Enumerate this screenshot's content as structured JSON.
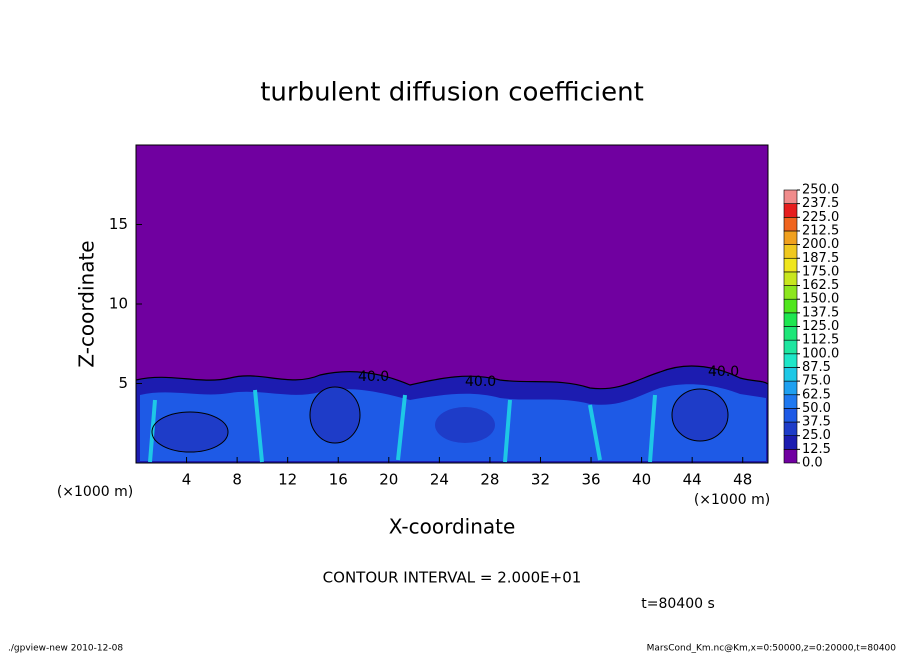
{
  "chart_data": {
    "type": "contour",
    "title": "turbulent diffusion coefficient",
    "xlabel": "X-coordinate",
    "ylabel": "Z-coordinate",
    "xunit": "(×1000 m)",
    "xlim": [
      0,
      50
    ],
    "xticks": [
      4,
      8,
      12,
      16,
      20,
      24,
      28,
      32,
      36,
      40,
      44,
      48
    ],
    "ylim": [
      0,
      20
    ],
    "yticks": [
      5,
      10,
      15
    ],
    "colorbar": {
      "ticks": [
        {
          "value": 0,
          "label": "0.0"
        },
        {
          "value": 12.5,
          "label": "12.5"
        },
        {
          "value": 25,
          "label": "25.0"
        },
        {
          "value": 37.5,
          "label": "37.5"
        },
        {
          "value": 50,
          "label": "50.0"
        },
        {
          "value": 62.5,
          "label": "62.5"
        },
        {
          "value": 75,
          "label": "75.0"
        },
        {
          "value": 87.5,
          "label": "87.5"
        },
        {
          "value": 100,
          "label": "100.0"
        },
        {
          "value": 112.5,
          "label": "112.5"
        },
        {
          "value": 125,
          "label": "125.0"
        },
        {
          "value": 137.5,
          "label": "137.5"
        },
        {
          "value": 150,
          "label": "150.0"
        },
        {
          "value": 162.5,
          "label": "162.5"
        },
        {
          "value": 175,
          "label": "175.0"
        },
        {
          "value": 187.5,
          "label": "187.5"
        },
        {
          "value": 200,
          "label": "200.0"
        },
        {
          "value": 212.5,
          "label": "212.5"
        },
        {
          "value": 225,
          "label": "225.0"
        },
        {
          "value": 237.5,
          "label": "237.5"
        },
        {
          "value": 250,
          "label": "250.0"
        }
      ],
      "colors": [
        "#7000a0",
        "#1c1cb0",
        "#1e3cc8",
        "#1e5ae6",
        "#1e78f0",
        "#1ea0f0",
        "#1ec8e6",
        "#1ee6c8",
        "#1ee6a0",
        "#1ee678",
        "#1ee650",
        "#50e61e",
        "#8ce61e",
        "#c8e61e",
        "#f0e61e",
        "#f0c81e",
        "#f0a01e",
        "#f0641e",
        "#e61e1e",
        "#f08c8c"
      ]
    },
    "contour_labels": [
      "40.0",
      "40.0",
      "40.0"
    ],
    "contour_interval": "CONTOUR INTERVAL = 2.000E+01",
    "time_label": "t=80400 s",
    "footer_left": "./gpview-new  2010-12-08",
    "footer_right": "MarsCond_Km.nc@Km,x=0:50000,z=0:20000,t=80400"
  }
}
